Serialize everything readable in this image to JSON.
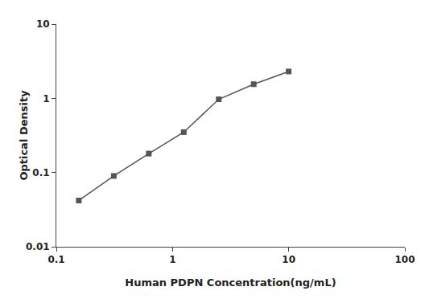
{
  "chart_data": {
    "type": "line",
    "x": [
      0.156,
      0.3125,
      0.625,
      1.25,
      2.5,
      5.0,
      10.0
    ],
    "values": [
      0.042,
      0.09,
      0.18,
      0.35,
      0.97,
      1.55,
      2.3
    ],
    "xlabel": "Human PDPN Concentration(ng/mL)",
    "ylabel": "Optical Density",
    "xlim": [
      0.1,
      100
    ],
    "ylim": [
      0.01,
      10
    ],
    "xticks": [
      0.1,
      1,
      10,
      100
    ],
    "yticks": [
      0.01,
      0.1,
      1,
      10
    ],
    "log": true,
    "grid": false,
    "color": "#555555",
    "marker": "square",
    "line_style": "solid"
  }
}
